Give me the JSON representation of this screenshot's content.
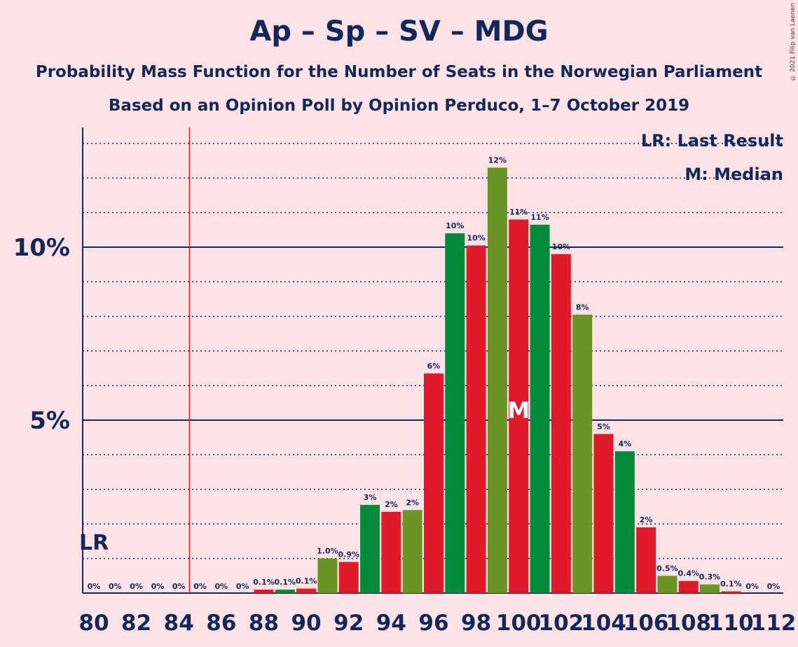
{
  "title": "Ap – Sp – SV – MDG",
  "subtitle_1": "Probability Mass Function for the Number of Seats in the Norwegian Parliament",
  "subtitle_2": "Based on an Opinion Poll by Opinion Perduco, 1–7 October 2019",
  "copyright": "© 2021 Filip van Laenen",
  "legend": {
    "last_result": "LR: Last Result",
    "median": "M: Median"
  },
  "markers": {
    "last_result_label": "LR",
    "last_result_seat": 84.5,
    "median_label": "M",
    "median_seat": 100
  },
  "colors": {
    "background": "#fde3e5",
    "text": "#12285a",
    "green": "#008a3a",
    "red": "#e0192b",
    "olive": "#6a9426",
    "last_result_line": "#e0192b"
  },
  "chart_data": {
    "type": "bar",
    "xlabel": "",
    "ylabel": "",
    "ylim": [
      0,
      13.5
    ],
    "y_ticks": [
      {
        "value": 5,
        "label": "5%"
      },
      {
        "value": 10,
        "label": "10%"
      }
    ],
    "x_tick_labels": [
      "80",
      "82",
      "84",
      "86",
      "88",
      "90",
      "92",
      "94",
      "96",
      "98",
      "100",
      "102",
      "104",
      "106",
      "108",
      "110",
      "112"
    ],
    "grid": true,
    "categories": [
      80,
      81,
      82,
      83,
      84,
      85,
      86,
      87,
      88,
      89,
      90,
      91,
      92,
      93,
      94,
      95,
      96,
      97,
      98,
      99,
      100,
      101,
      102,
      103,
      104,
      105,
      106,
      107,
      108,
      109,
      110,
      111,
      112
    ],
    "values": [
      0,
      0,
      0,
      0,
      0,
      0,
      0,
      0,
      0.1,
      0.1,
      0.13,
      1.0,
      0.9,
      2.55,
      2.35,
      2.4,
      6.35,
      10.4,
      10.05,
      12.3,
      10.8,
      10.65,
      9.8,
      8.05,
      4.6,
      4.1,
      1.9,
      0.5,
      0.35,
      0.25,
      0.05,
      0,
      0
    ],
    "data_labels": [
      "0%",
      "0%",
      "0%",
      "0%",
      "0%",
      "0%",
      "0%",
      "0%",
      "0.1%",
      "0.1%",
      "0.1%",
      "1.0%",
      "0.9%",
      "3%",
      "2%",
      "2%",
      "6%",
      "10%",
      "10%",
      "12%",
      "11%",
      "11%",
      "10%",
      "8%",
      "5%",
      "4%",
      "2%",
      "0.5%",
      "0.4%",
      "0.3%",
      "0.1%",
      "0%",
      "0%"
    ],
    "bar_colors": [
      "red",
      "green",
      "olive",
      "red",
      "green",
      "olive",
      "red",
      "green",
      "red",
      "green",
      "red",
      "olive",
      "red",
      "green",
      "red",
      "olive",
      "red",
      "green",
      "red",
      "olive",
      "red",
      "green",
      "red",
      "olive",
      "red",
      "green",
      "red",
      "olive",
      "red",
      "olive",
      "red",
      "green",
      "red"
    ]
  }
}
